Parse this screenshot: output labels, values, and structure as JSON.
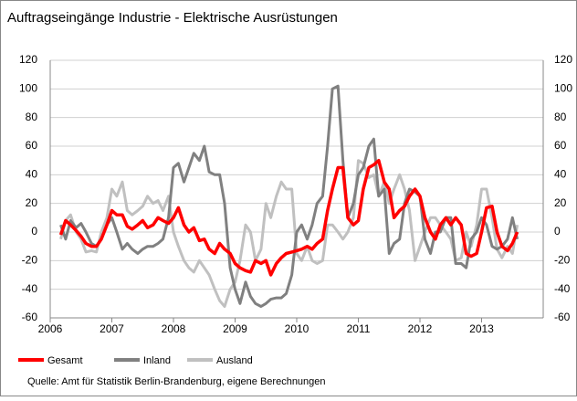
{
  "chart_data": {
    "type": "line",
    "title": "Auftragseingänge Industrie  - Elektrische Ausrüstungen",
    "source": "Quelle: Amt für Statistik Berlin-Brandenburg, eigene Berechnungen",
    "x": [
      2006.17,
      2006.25,
      2006.33,
      2006.42,
      2006.5,
      2006.58,
      2006.67,
      2006.75,
      2006.83,
      2006.92,
      2007.0,
      2007.08,
      2007.17,
      2007.25,
      2007.33,
      2007.42,
      2007.5,
      2007.58,
      2007.67,
      2007.75,
      2007.83,
      2007.92,
      2008.0,
      2008.08,
      2008.17,
      2008.25,
      2008.33,
      2008.42,
      2008.5,
      2008.58,
      2008.67,
      2008.75,
      2008.83,
      2008.92,
      2009.0,
      2009.08,
      2009.17,
      2009.25,
      2009.33,
      2009.42,
      2009.5,
      2009.58,
      2009.67,
      2009.75,
      2009.83,
      2009.92,
      2010.0,
      2010.08,
      2010.17,
      2010.25,
      2010.33,
      2010.42,
      2010.5,
      2010.58,
      2010.67,
      2010.75,
      2010.83,
      2010.92,
      2011.0,
      2011.08,
      2011.17,
      2011.25,
      2011.33,
      2011.42,
      2011.5,
      2011.58,
      2011.67,
      2011.75,
      2011.83,
      2011.92,
      2012.0,
      2012.08,
      2012.17,
      2012.25,
      2012.33,
      2012.42,
      2012.5,
      2012.58,
      2012.67,
      2012.75,
      2012.83,
      2012.92,
      2013.0,
      2013.08,
      2013.17,
      2013.25,
      2013.33,
      2013.42,
      2013.5,
      2013.58
    ],
    "series": [
      {
        "name": "Gesamt",
        "color": "#ff0000",
        "values": [
          -2,
          8,
          5,
          1,
          -3,
          -8,
          -10,
          -10,
          -5,
          5,
          15,
          12,
          12,
          4,
          2,
          5,
          8,
          3,
          5,
          10,
          8,
          6,
          10,
          17,
          5,
          0,
          3,
          -6,
          -5,
          -12,
          -15,
          -8,
          -12,
          -15,
          -22,
          -25,
          -27,
          -28,
          -20,
          -22,
          -20,
          -30,
          -22,
          -18,
          -15,
          -14,
          -13,
          -12,
          -10,
          -12,
          -8,
          -5,
          15,
          30,
          45,
          45,
          10,
          5,
          8,
          30,
          45,
          47,
          50,
          35,
          30,
          10,
          15,
          18,
          25,
          30,
          25,
          10,
          0,
          -5,
          5,
          10,
          5,
          10,
          5,
          -15,
          -17,
          -15,
          0,
          17,
          18,
          0,
          -10,
          -13,
          -8,
          0
        ]
      },
      {
        "name": "Inland",
        "color": "#808080",
        "values": [
          5,
          -5,
          8,
          3,
          6,
          0,
          -8,
          -10,
          -5,
          5,
          10,
          0,
          -12,
          -8,
          -12,
          -15,
          -12,
          -10,
          -10,
          -8,
          -5,
          10,
          45,
          48,
          35,
          45,
          55,
          50,
          60,
          42,
          40,
          40,
          20,
          -25,
          -40,
          -50,
          -35,
          -45,
          -50,
          -52,
          -50,
          -47,
          -46,
          -46,
          -43,
          -30,
          0,
          5,
          -5,
          5,
          20,
          25,
          60,
          100,
          102,
          50,
          10,
          20,
          40,
          45,
          60,
          65,
          25,
          30,
          -15,
          -8,
          -5,
          20,
          30,
          28,
          25,
          -5,
          -15,
          0,
          0,
          10,
          10,
          -22,
          -22,
          -25,
          -5,
          0,
          10,
          5,
          -10,
          -12,
          -10,
          -5,
          10,
          -5
        ]
      },
      {
        "name": "Ausland",
        "color": "#c0c0c0",
        "values": [
          -5,
          8,
          12,
          0,
          -5,
          -14,
          -13,
          -14,
          0,
          10,
          30,
          25,
          35,
          15,
          12,
          15,
          18,
          25,
          20,
          22,
          15,
          25,
          0,
          -10,
          -20,
          -25,
          -28,
          -20,
          -25,
          -30,
          -40,
          -48,
          -52,
          -40,
          -35,
          -20,
          5,
          0,
          -20,
          -12,
          20,
          10,
          25,
          35,
          30,
          30,
          -15,
          -20,
          -10,
          -20,
          -22,
          -20,
          5,
          5,
          0,
          -5,
          0,
          10,
          50,
          48,
          38,
          40,
          25,
          35,
          20,
          30,
          40,
          30,
          15,
          -20,
          -10,
          0,
          10,
          10,
          5,
          0,
          -5,
          -20,
          -18,
          0,
          -10,
          5,
          30,
          30,
          10,
          -12,
          -18,
          -10,
          -15,
          5
        ]
      }
    ],
    "xlim": [
      2006,
      2014
    ],
    "xticks": [
      2006,
      2007,
      2008,
      2009,
      2010,
      2011,
      2012,
      2013
    ],
    "ylim": [
      -60,
      120
    ],
    "yticks": [
      -60,
      -40,
      -20,
      0,
      20,
      40,
      60,
      80,
      100,
      120
    ],
    "y2lim": [
      -60,
      120
    ],
    "y2ticks": [
      -60,
      -40,
      -20,
      0,
      20,
      40,
      60,
      80,
      100,
      120
    ],
    "grid": true,
    "legend": "bottom"
  }
}
